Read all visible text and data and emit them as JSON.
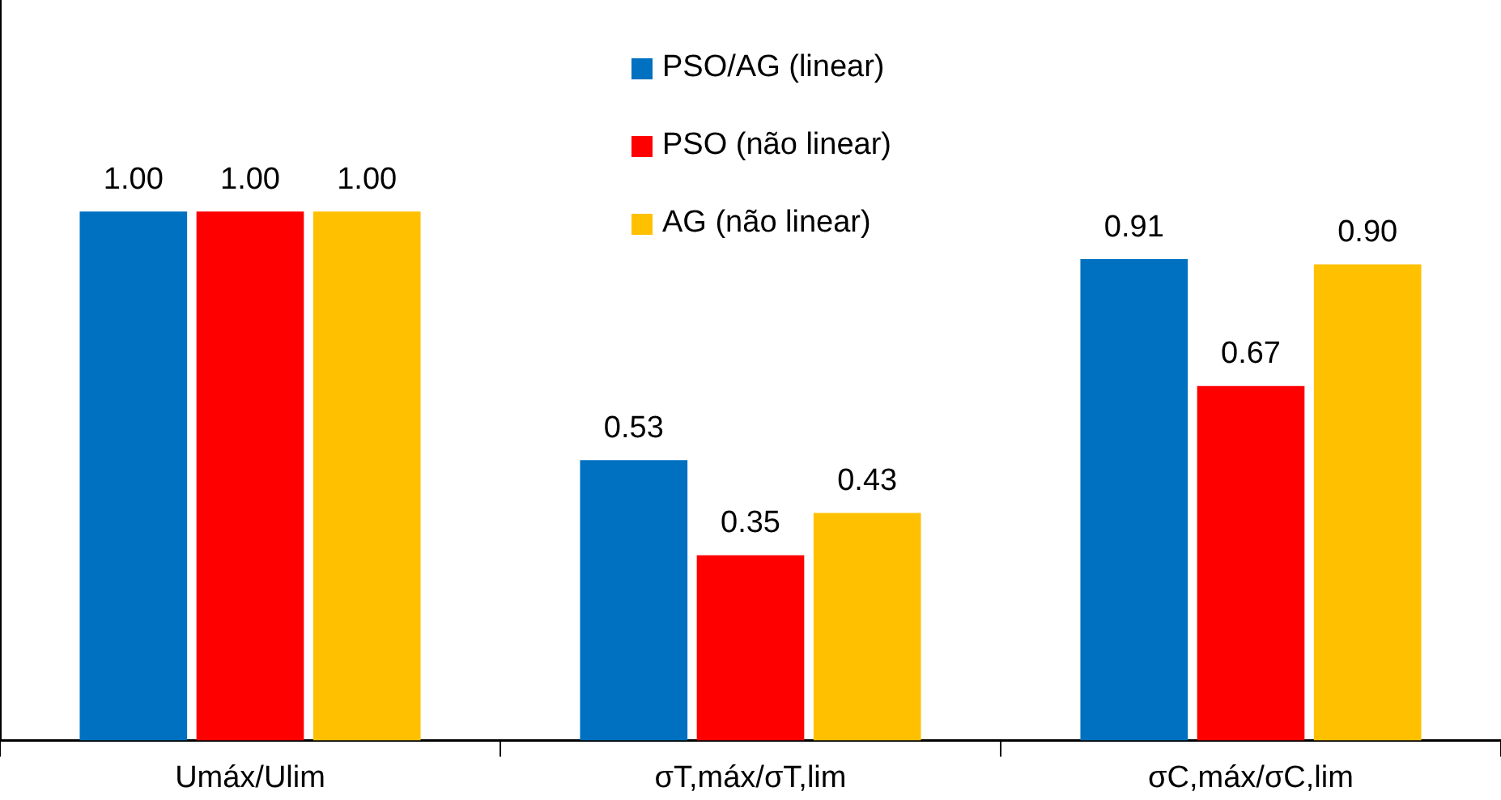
{
  "chart_data": {
    "type": "bar",
    "categories": [
      "Umáx/Ulim",
      "σT,máx/σT,lim",
      "σC,máx/σC,lim"
    ],
    "series": [
      {
        "name": "PSO/AG (linear)",
        "color": "#0070c0",
        "values": [
          1.0,
          0.53,
          0.91
        ],
        "value_labels": [
          "1.00",
          "0.53",
          "0.91"
        ]
      },
      {
        "name": "PSO (não linear)",
        "color": "#ff0000",
        "values": [
          1.0,
          0.35,
          0.67
        ],
        "value_labels": [
          "1.00",
          "0.35",
          "0.67"
        ]
      },
      {
        "name": "AG (não linear)",
        "color": "#ffc000",
        "values": [
          1.0,
          0.43,
          0.9
        ],
        "value_labels": [
          "1.00",
          "0.43",
          "0.90"
        ]
      }
    ],
    "ylim": [
      0,
      1.4
    ],
    "tick_labels": "x",
    "grid": false,
    "legend": "top"
  }
}
